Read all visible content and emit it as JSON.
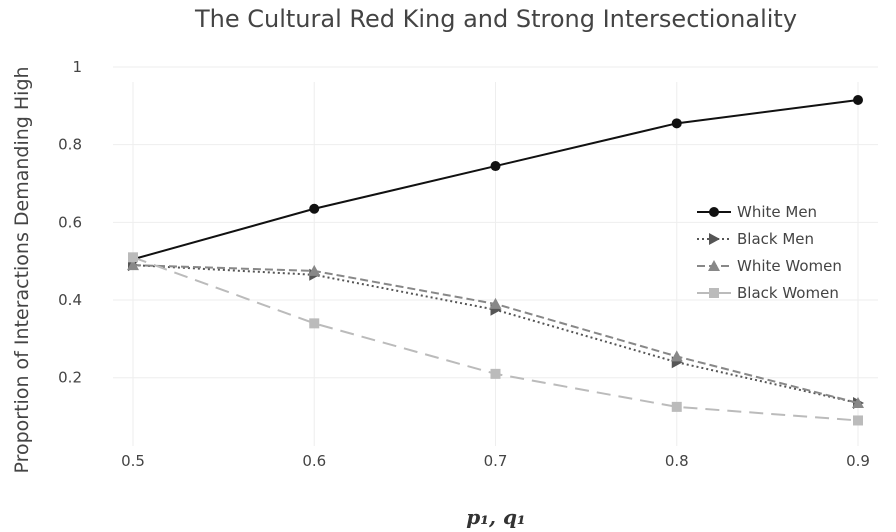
{
  "chart_data": {
    "type": "line",
    "title": "The Cultural Red King and Strong Intersectionality",
    "xlabel": "p₁, q₁",
    "ylabel": "Proportion of Interactions Demanding High",
    "x": [
      0.5,
      0.6,
      0.7,
      0.8,
      0.9
    ],
    "x_tick_labels": [
      "0.5",
      "0.6",
      "0.7",
      "0.8",
      "0.9"
    ],
    "y_tick_values": [
      0.2,
      0.4,
      0.6,
      0.8,
      1
    ],
    "y_tick_labels": [
      "0.2",
      "0.4",
      "0.6",
      "0.8",
      "1"
    ],
    "xlim": [
      0.5,
      0.9
    ],
    "ylim": [
      0.05,
      1.0
    ],
    "grid": true,
    "legend_position": "right",
    "series": [
      {
        "name": "White Men",
        "values": [
          0.505,
          0.635,
          0.745,
          0.855,
          0.915
        ],
        "color": "#111111",
        "dash": "solid",
        "marker": "circle"
      },
      {
        "name": "Black Men",
        "values": [
          0.49,
          0.465,
          0.375,
          0.24,
          0.135
        ],
        "color": "#555555",
        "dash": "dot",
        "marker": "triangle-right"
      },
      {
        "name": "White Women",
        "values": [
          0.49,
          0.475,
          0.39,
          0.255,
          0.135
        ],
        "color": "#888888",
        "dash": "dash",
        "marker": "triangle-up"
      },
      {
        "name": "Black Women",
        "values": [
          0.51,
          0.34,
          0.21,
          0.125,
          0.09
        ],
        "color": "#bbbbbb",
        "dash": "longdash",
        "marker": "square"
      }
    ]
  }
}
